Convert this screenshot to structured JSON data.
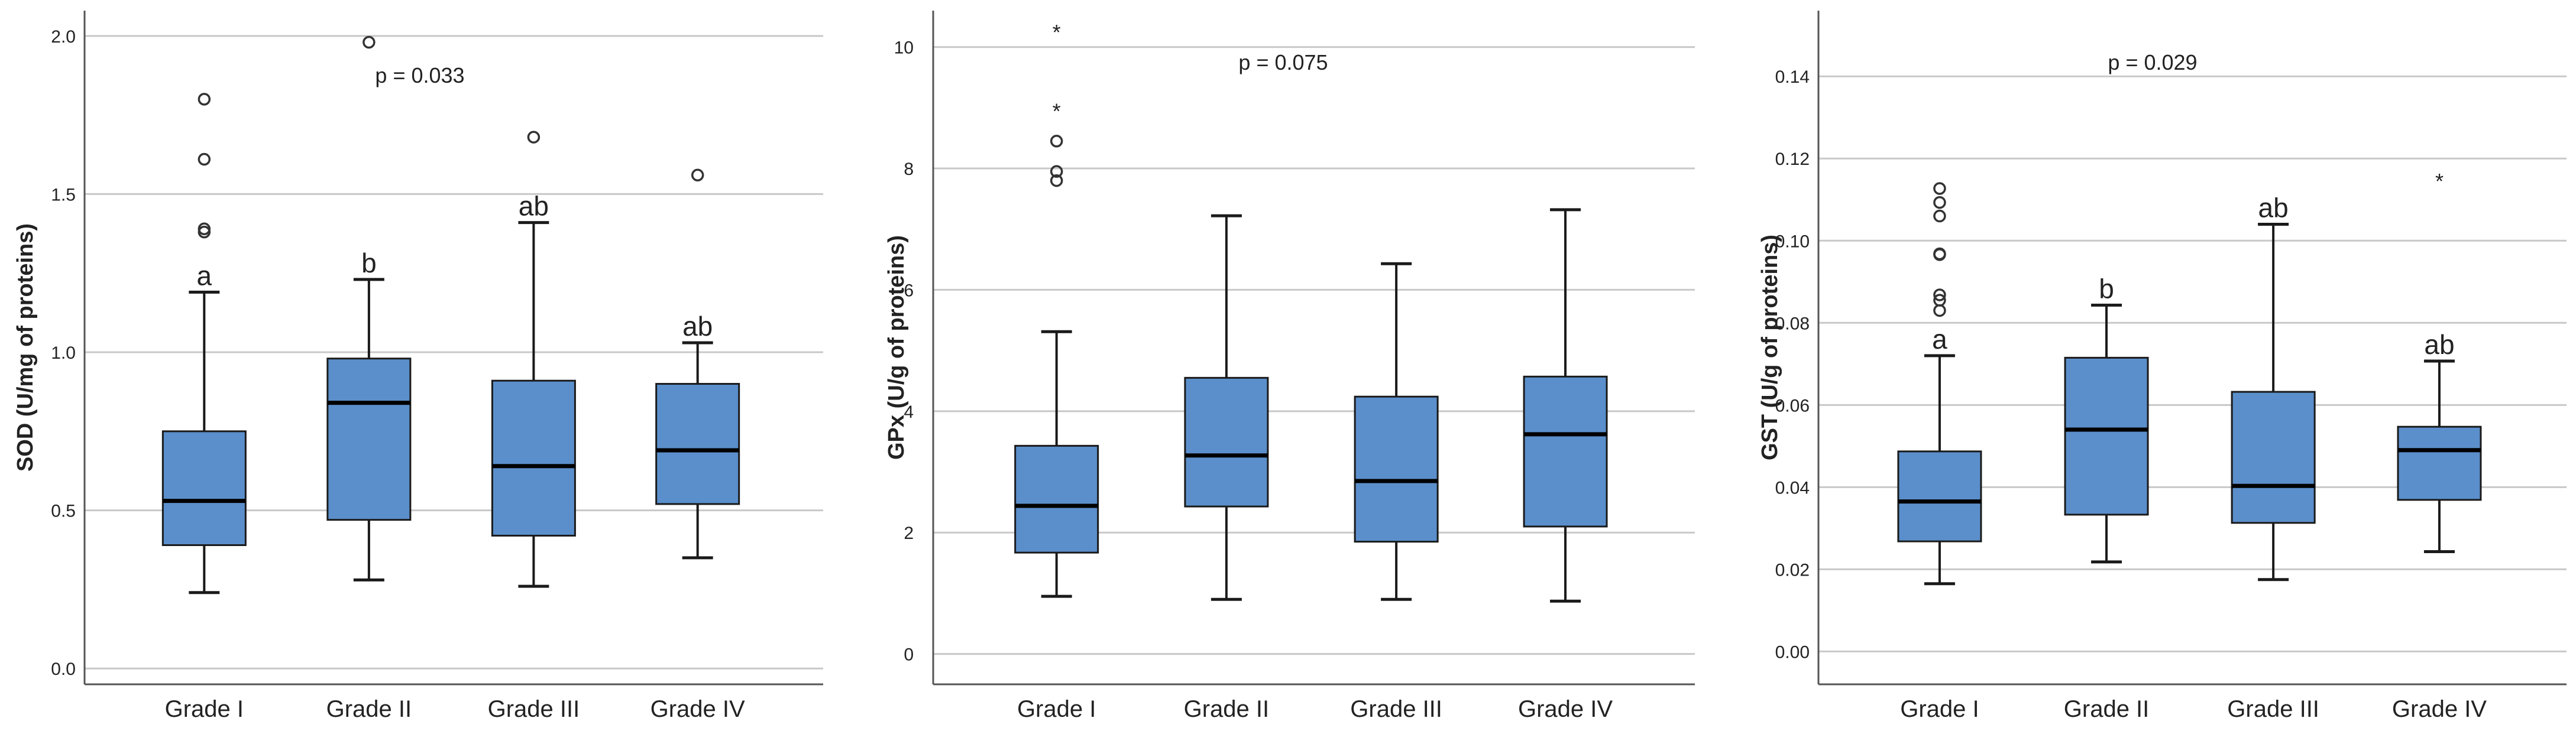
{
  "colors": {
    "box_fill": "#5b8fcb",
    "box_stroke": "#1a1a1a",
    "grid": "#c8c8c8",
    "axis": "#555555",
    "text": "#222222"
  },
  "chart_data": [
    {
      "type": "boxplot",
      "ylabel": "SOD (U/mg of proteins)",
      "categories": [
        "Grade I",
        "Grade II",
        "Grade III",
        "Grade IV"
      ],
      "ylim": [
        -0.05,
        2.08
      ],
      "yticks": [
        0.0,
        0.5,
        1.0,
        1.5,
        2.0
      ],
      "tick_labels": [
        "0.0",
        "0.5",
        "1.0",
        "1.5",
        "2.0"
      ],
      "p_value": "p = 0.033",
      "boxes": [
        {
          "whisker_low": 0.24,
          "q1": 0.39,
          "median": 0.53,
          "q3": 0.75,
          "whisker_high": 1.19,
          "outliers": [
            1.8,
            1.61,
            1.39,
            1.38
          ],
          "extremes": [],
          "letter": "a"
        },
        {
          "whisker_low": 0.28,
          "q1": 0.47,
          "median": 0.84,
          "q3": 0.98,
          "whisker_high": 1.23,
          "outliers": [
            1.98
          ],
          "extremes": [],
          "letter": "b"
        },
        {
          "whisker_low": 0.26,
          "q1": 0.42,
          "median": 0.64,
          "q3": 0.91,
          "whisker_high": 1.41,
          "outliers": [
            1.68
          ],
          "extremes": [],
          "letter": "ab"
        },
        {
          "whisker_low": 0.35,
          "q1": 0.52,
          "median": 0.69,
          "q3": 0.9,
          "whisker_high": 1.03,
          "outliers": [
            1.56
          ],
          "extremes": [],
          "letter": "ab"
        }
      ]
    },
    {
      "type": "boxplot",
      "ylabel": "GPx (U/g of proteins)",
      "categories": [
        "Grade I",
        "Grade II",
        "Grade III",
        "Grade IV"
      ],
      "ylim": [
        -0.5,
        10.6
      ],
      "yticks": [
        0,
        2,
        4,
        6,
        8,
        10
      ],
      "tick_labels": [
        "0",
        "2",
        "4",
        "6",
        "8",
        "10"
      ],
      "p_value": "p = 0.075",
      "boxes": [
        {
          "whisker_low": 0.95,
          "q1": 1.67,
          "median": 2.44,
          "q3": 3.43,
          "whisker_high": 5.31,
          "outliers": [
            8.45,
            7.95,
            7.8
          ],
          "extremes": [
            10.28,
            8.98
          ],
          "letter": ""
        },
        {
          "whisker_low": 0.9,
          "q1": 2.43,
          "median": 3.27,
          "q3": 4.55,
          "whisker_high": 7.22,
          "outliers": [],
          "extremes": [],
          "letter": ""
        },
        {
          "whisker_low": 0.9,
          "q1": 1.85,
          "median": 2.85,
          "q3": 4.24,
          "whisker_high": 6.43,
          "outliers": [],
          "extremes": [],
          "letter": ""
        },
        {
          "whisker_low": 0.87,
          "q1": 2.1,
          "median": 3.62,
          "q3": 4.57,
          "whisker_high": 7.32,
          "outliers": [],
          "extremes": [],
          "letter": ""
        }
      ]
    },
    {
      "type": "boxplot",
      "ylabel": "GST (U/g of proteins)",
      "categories": [
        "Grade I",
        "Grade II",
        "Grade III",
        "Grade IV"
      ],
      "ylim": [
        -0.008,
        0.156
      ],
      "yticks": [
        0.0,
        0.02,
        0.04,
        0.06,
        0.08,
        0.1,
        0.12,
        0.14
      ],
      "tick_labels": [
        "0.00",
        "0.02",
        "0.04",
        "0.06",
        "0.08",
        "0.10",
        "0.12",
        "0.14"
      ],
      "p_value": "p = 0.029",
      "boxes": [
        {
          "whisker_low": 0.0165,
          "q1": 0.0268,
          "median": 0.0365,
          "q3": 0.0487,
          "whisker_high": 0.072,
          "outliers": [
            0.1127,
            0.1093,
            0.106,
            0.0968,
            0.0966,
            0.0868,
            0.0855,
            0.083
          ],
          "extremes": [],
          "letter": "a"
        },
        {
          "whisker_low": 0.0218,
          "q1": 0.0333,
          "median": 0.054,
          "q3": 0.0715,
          "whisker_high": 0.0843,
          "outliers": [],
          "extremes": [],
          "letter": "b"
        },
        {
          "whisker_low": 0.0175,
          "q1": 0.0313,
          "median": 0.0403,
          "q3": 0.0632,
          "whisker_high": 0.104,
          "outliers": [],
          "extremes": [],
          "letter": "ab"
        },
        {
          "whisker_low": 0.0243,
          "q1": 0.0369,
          "median": 0.049,
          "q3": 0.0547,
          "whisker_high": 0.0707,
          "outliers": [],
          "extremes": [
            0.115
          ],
          "letter": "ab"
        }
      ]
    }
  ]
}
